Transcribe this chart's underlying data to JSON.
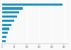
{
  "values": [
    245,
    82,
    70,
    60,
    50,
    38,
    30,
    24,
    18,
    13
  ],
  "bar_color": "#2196c9",
  "background_color": "#f9f9f9",
  "grid_color": "#ffffff",
  "xlim": [
    0,
    270
  ],
  "xticks": [
    0,
    50,
    100,
    150,
    200,
    250
  ],
  "figsize": [
    1.0,
    0.71
  ],
  "dpi": 100
}
